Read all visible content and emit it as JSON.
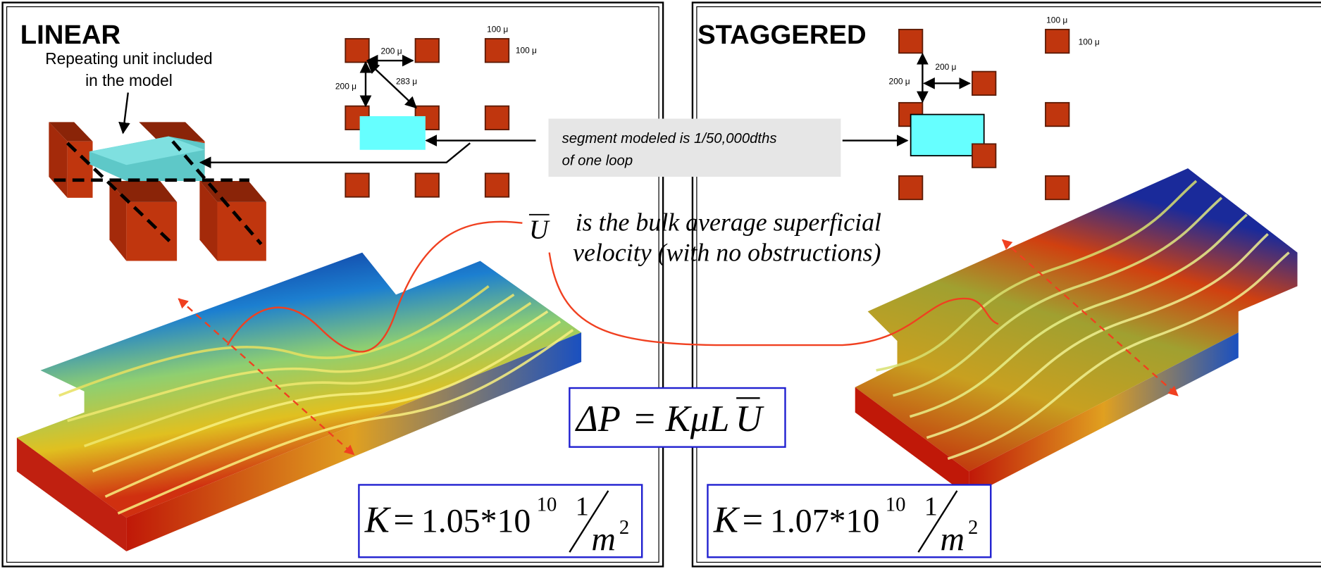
{
  "left_panel": {
    "title": "LINEAR",
    "caption": [
      "Repeating unit included",
      "in the model"
    ],
    "dimensions": {
      "pitch_horizontal": "200 μ",
      "pitch_vertical": "200 μ",
      "diagonal": "283 μ",
      "post_width": "100 μ",
      "post_height": "100 μ"
    },
    "equation": {
      "lhs": "K",
      "equals": "=",
      "coefficient": "1.05*10",
      "exponent": "10",
      "numerator": "1",
      "denominator": "m",
      "denominator_exponent": "2"
    }
  },
  "right_panel": {
    "title": "STAGGERED",
    "dimensions": {
      "post_width": "100 μ",
      "post_height": "100 μ",
      "pitch_horizontal": "200 μ",
      "pitch_vertical": "200 μ"
    },
    "equation": {
      "lhs": "K",
      "equals": "=",
      "coefficient": "1.07*10",
      "exponent": "10",
      "numerator": "1",
      "denominator": "m",
      "denominator_exponent": "2"
    }
  },
  "callout": {
    "lines": [
      "segment modeled is 1/50,000dths",
      "of one loop"
    ]
  },
  "velocity_note": {
    "symbol": "U",
    "lines": [
      "is the bulk average superficial",
      "velocity (with no obstructions)"
    ]
  },
  "pressure_equation": {
    "lhs": "ΔP",
    "equals": "=",
    "rhs": "KμL",
    "velocity": "U"
  }
}
